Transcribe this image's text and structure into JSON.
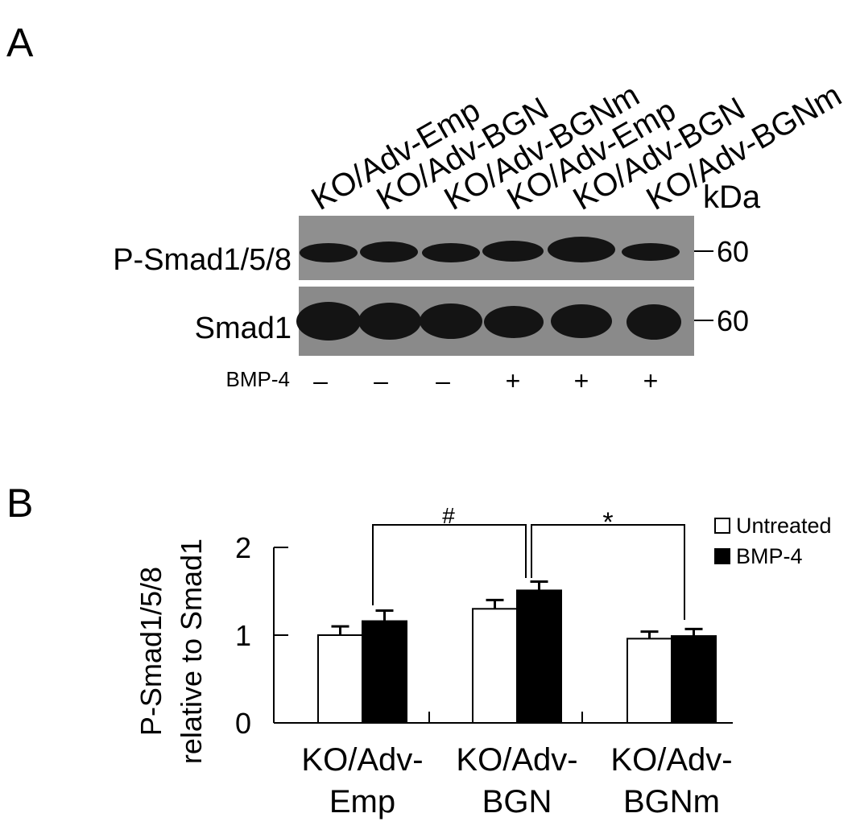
{
  "panel_a": {
    "label": "A",
    "lanes": [
      "KO/Adv-Emp",
      "KO/Adv-BGN",
      "KO/Adv-BGNm",
      "KO/Adv-Emp",
      "KO/Adv-BGN",
      "KO/Adv-BGNm"
    ],
    "kda_label": "kDa",
    "rows": [
      {
        "label": "P-Smad1/5/8",
        "marker": "60"
      },
      {
        "label": "Smad1",
        "marker": "60"
      }
    ],
    "treatment_label": "BMP-4",
    "treatment": [
      "–",
      "–",
      "–",
      "+",
      "+",
      "+"
    ]
  },
  "chart_data": {
    "type": "bar",
    "panel_label": "B",
    "ylabel": [
      "P-Smad1/5/8",
      "relative to Smad1"
    ],
    "categories": [
      "KO/Adv-Emp",
      "KO/Adv-BGN",
      "KO/Adv-BGNm"
    ],
    "series": [
      {
        "name": "Untreated",
        "color": "#ffffff",
        "values": [
          1.0,
          1.3,
          0.96
        ],
        "errors": [
          0.1,
          0.1,
          0.08
        ]
      },
      {
        "name": "BMP-4",
        "color": "#000000",
        "values": [
          1.16,
          1.51,
          0.99
        ],
        "errors": [
          0.12,
          0.1,
          0.08
        ]
      }
    ],
    "ylim": [
      0,
      2
    ],
    "yticks": [
      0,
      1,
      2
    ],
    "legend": "upper right",
    "annotations": [
      "#",
      "*"
    ]
  }
}
